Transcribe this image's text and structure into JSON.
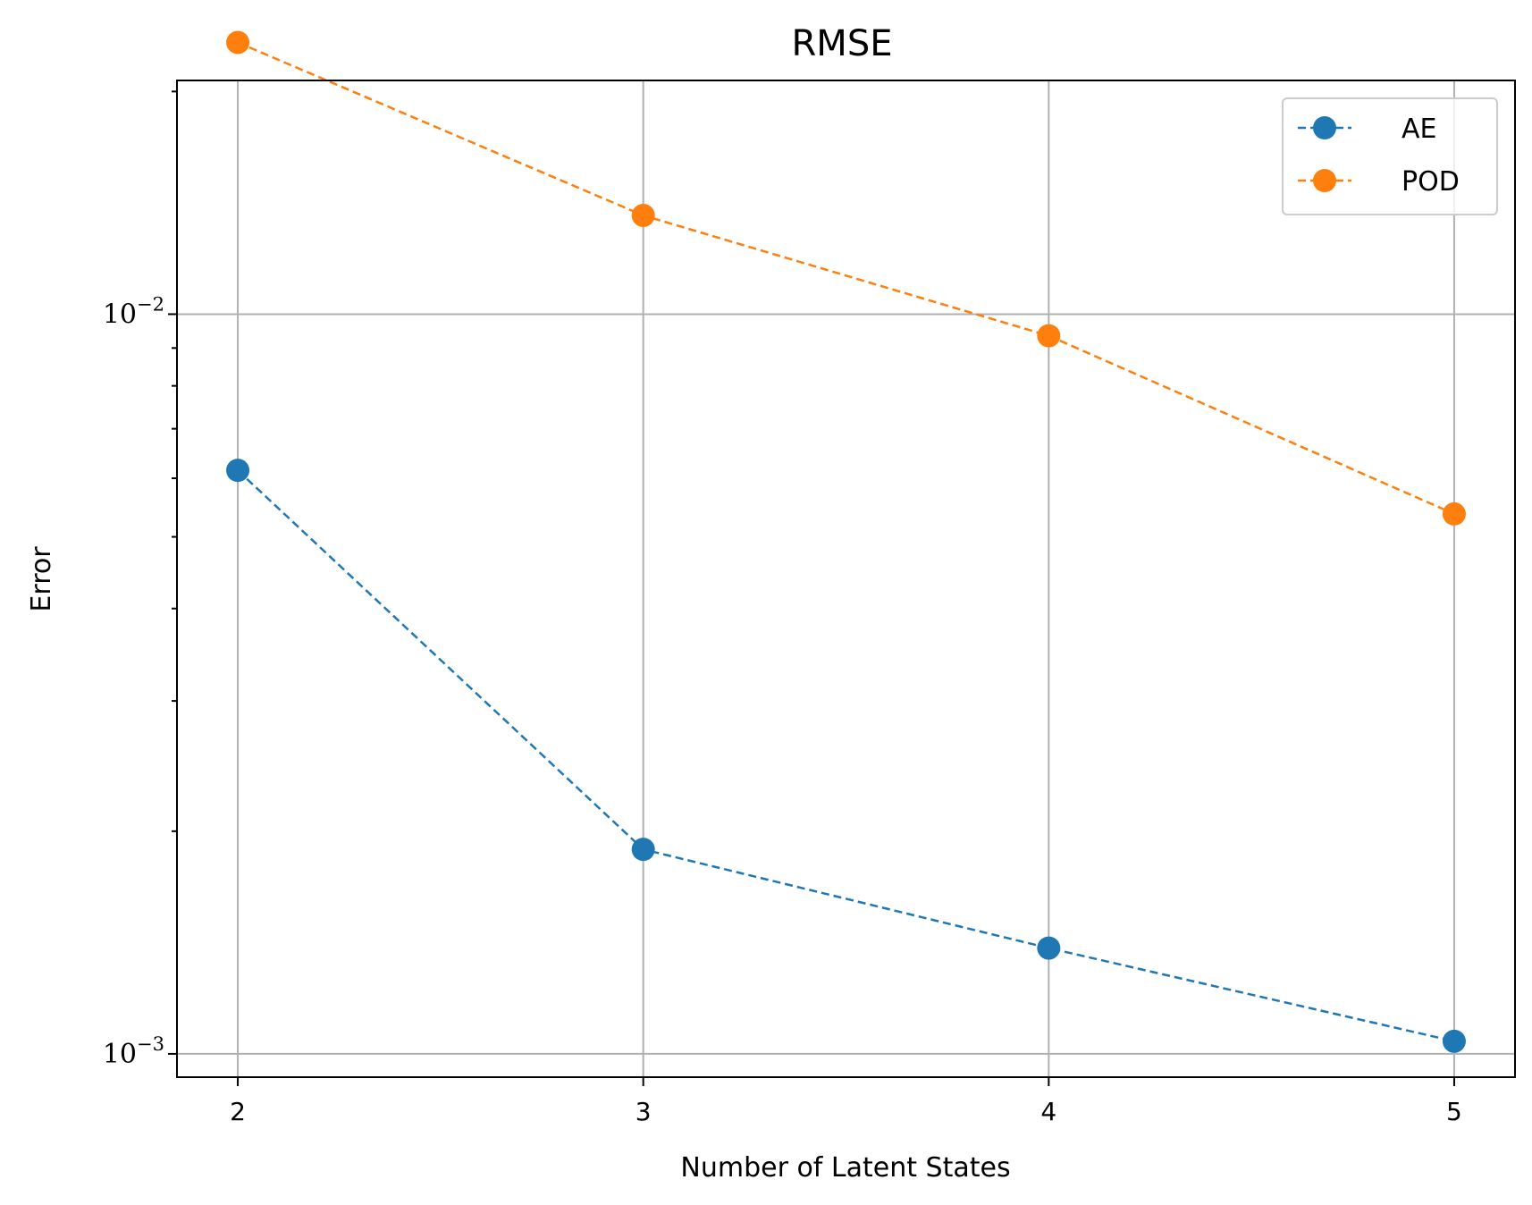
{
  "chart_data": {
    "type": "line",
    "title": "RMSE",
    "xlabel": "Number of Latent States",
    "ylabel": "Error",
    "yscale": "log",
    "ylim": [
      0.00093,
      0.0207
    ],
    "xlim": [
      1.85,
      5.15
    ],
    "x": [
      2,
      3,
      4,
      5
    ],
    "xticks": [
      "2",
      "3",
      "4",
      "5"
    ],
    "yticks": [
      {
        "value": 0.01,
        "base": "10",
        "exp": "−2"
      },
      {
        "value": 0.001,
        "base": "10",
        "exp": "−3"
      }
    ],
    "grid": true,
    "legend_position": "top-right",
    "series": [
      {
        "name": "AE",
        "color": "#1f77b4",
        "values": [
          0.00615,
          0.00189,
          0.00139,
          0.00104
        ]
      },
      {
        "name": "POD",
        "color": "#ff7f0e",
        "values": [
          0.0233,
          0.0136,
          0.00935,
          0.00537
        ]
      }
    ]
  }
}
